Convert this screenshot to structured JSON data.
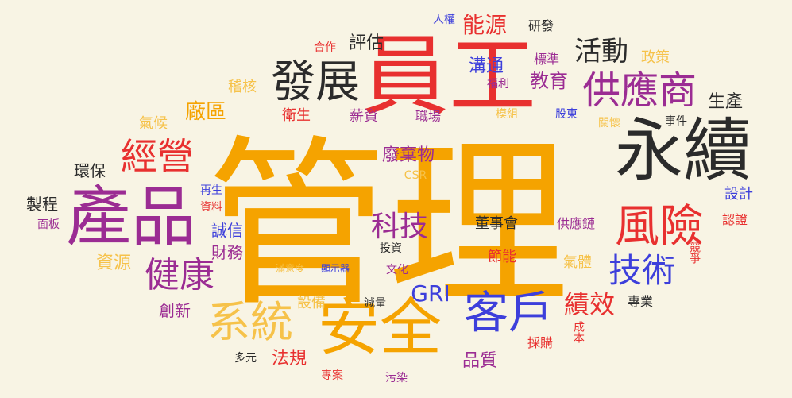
{
  "words": [
    {
      "text": "管理",
      "color": "orange"
    },
    {
      "text": "員工",
      "color": "red"
    },
    {
      "text": "永續",
      "color": "black"
    },
    {
      "text": "產品",
      "color": "purple"
    },
    {
      "text": "安全",
      "color": "orange"
    },
    {
      "text": "發展",
      "color": "black"
    },
    {
      "text": "供應商",
      "color": "purple"
    },
    {
      "text": "風險",
      "color": "red"
    },
    {
      "text": "客戶",
      "color": "blue"
    },
    {
      "text": "系統",
      "color": "lorange"
    },
    {
      "text": "經營",
      "color": "red"
    },
    {
      "text": "健康",
      "color": "purple"
    },
    {
      "text": "技術",
      "color": "blue"
    },
    {
      "text": "科技",
      "color": "purple"
    },
    {
      "text": "活動",
      "color": "black"
    },
    {
      "text": "績效",
      "color": "red"
    },
    {
      "text": "能源",
      "color": "red"
    },
    {
      "text": "廠區",
      "color": "orange"
    },
    {
      "text": "GRI",
      "color": "blue"
    },
    {
      "text": "溝通",
      "color": "blue"
    },
    {
      "text": "教育",
      "color": "purple"
    },
    {
      "text": "評估",
      "color": "black"
    },
    {
      "text": "生產",
      "color": "black"
    },
    {
      "text": "廢棄物",
      "color": "purple"
    },
    {
      "text": "誠信",
      "color": "blue"
    },
    {
      "text": "財務",
      "color": "purple"
    },
    {
      "text": "資源",
      "color": "lorange"
    },
    {
      "text": "創新",
      "color": "purple"
    },
    {
      "text": "法規",
      "color": "red"
    },
    {
      "text": "品質",
      "color": "purple"
    },
    {
      "text": "環保",
      "color": "black"
    },
    {
      "text": "製程",
      "color": "black"
    },
    {
      "text": "稽核",
      "color": "lorange"
    },
    {
      "text": "氣候",
      "color": "lorange"
    },
    {
      "text": "衛生",
      "color": "red"
    },
    {
      "text": "薪資",
      "color": "purple"
    },
    {
      "text": "職場",
      "color": "purple"
    },
    {
      "text": "標準",
      "color": "purple"
    },
    {
      "text": "政策",
      "color": "lorange"
    },
    {
      "text": "研發",
      "color": "black"
    },
    {
      "text": "人權",
      "color": "blue"
    },
    {
      "text": "合作",
      "color": "red"
    },
    {
      "text": "福利",
      "color": "purple"
    },
    {
      "text": "模組",
      "color": "lorange"
    },
    {
      "text": "股東",
      "color": "blue"
    },
    {
      "text": "關懷",
      "color": "lorange"
    },
    {
      "text": "事件",
      "color": "black"
    },
    {
      "text": "設計",
      "color": "blue"
    },
    {
      "text": "認證",
      "color": "red"
    },
    {
      "text": "競爭",
      "color": "red"
    },
    {
      "text": "董事會",
      "color": "black"
    },
    {
      "text": "供應鏈",
      "color": "purple"
    },
    {
      "text": "節能",
      "color": "red"
    },
    {
      "text": "氣體",
      "color": "lorange"
    },
    {
      "text": "專業",
      "color": "black"
    },
    {
      "text": "成本",
      "color": "red"
    },
    {
      "text": "採購",
      "color": "red"
    },
    {
      "text": "設備",
      "color": "lorange"
    },
    {
      "text": "減量",
      "color": "black"
    },
    {
      "text": "多元",
      "color": "black"
    },
    {
      "text": "專案",
      "color": "red"
    },
    {
      "text": "污染",
      "color": "purple"
    },
    {
      "text": "投資",
      "color": "black"
    },
    {
      "text": "文化",
      "color": "purple"
    },
    {
      "text": "滿意度",
      "color": "lorange"
    },
    {
      "text": "顯示器",
      "color": "blue"
    },
    {
      "text": "CSR",
      "color": "lorange"
    },
    {
      "text": "再生",
      "color": "blue"
    },
    {
      "text": "資料",
      "color": "red"
    },
    {
      "text": "面板",
      "color": "purple"
    }
  ]
}
